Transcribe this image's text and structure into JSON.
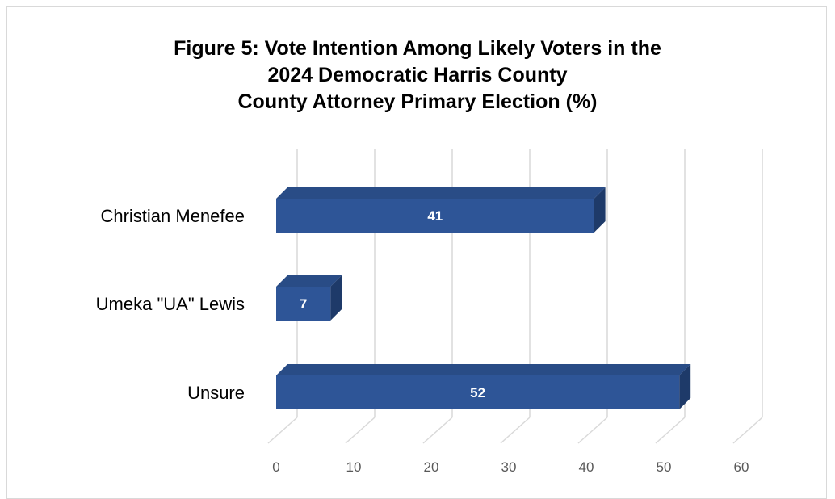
{
  "chart_data": {
    "type": "bar",
    "orientation": "horizontal",
    "title_lines": [
      "Figure 5: Vote Intention Among Likely Voters in the",
      "2024 Democratic Harris County",
      "County Attorney Primary Election (%)"
    ],
    "categories": [
      "Christian Menefee",
      "Umeka \"UA\" Lewis",
      "Unsure"
    ],
    "values": [
      41,
      7,
      52
    ],
    "xlim": [
      0,
      60
    ],
    "x_ticks": [
      0,
      10,
      20,
      30,
      40,
      50,
      60
    ],
    "grid": true,
    "legend": "none",
    "colors": {
      "bar_front": "#2e5597",
      "bar_top": "#294c86",
      "bar_side": "#1e3a69",
      "grid": "#d9d9d9",
      "tick_text": "#595959"
    }
  }
}
